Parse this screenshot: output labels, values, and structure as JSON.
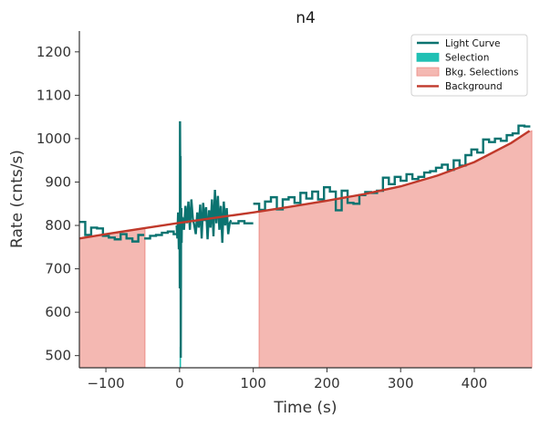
{
  "chart_data": {
    "type": "line",
    "title": "n4",
    "xlabel": "Time (s)",
    "ylabel": "Rate (cnts/s)",
    "xlim": [
      -136,
      478
    ],
    "ylim": [
      472,
      1248
    ],
    "x_ticks": [
      -100,
      0,
      100,
      200,
      300,
      400
    ],
    "x_tick_labels": [
      "−100",
      "0",
      "100",
      "200",
      "300",
      "400"
    ],
    "y_ticks": [
      500,
      600,
      700,
      800,
      900,
      1000,
      1100,
      1200
    ],
    "y_tick_labels": [
      "500",
      "600",
      "700",
      "800",
      "900",
      "1000",
      "1100",
      "1200"
    ],
    "grid": false,
    "legend_position": "top-right",
    "legend": [
      {
        "label": "Light Curve",
        "kind": "line",
        "color": "#0b7370"
      },
      {
        "label": "Selection",
        "kind": "patch",
        "color": "#20c0b4"
      },
      {
        "label": "Bkg. Selections",
        "kind": "patch",
        "color": "#f4b8b2"
      },
      {
        "label": "Background",
        "kind": "line",
        "color": "#c0392b"
      }
    ],
    "background_fit": {
      "name": "Background",
      "color": "#c0392b",
      "x": [
        -136,
        -100,
        -50,
        0,
        50,
        100,
        150,
        200,
        250,
        300,
        350,
        400,
        450,
        475
      ],
      "y": [
        770,
        780,
        793,
        806,
        818,
        830,
        843,
        857,
        872,
        890,
        915,
        946,
        990,
        1018
      ]
    },
    "bkg_selections": [
      {
        "x_start": -136,
        "x_end": -47
      },
      {
        "x_start": 108,
        "x_end": 478
      }
    ],
    "selection": {
      "x_start": 0,
      "x_end": 2,
      "color": "#20c0b4"
    },
    "light_curve": {
      "name": "Light Curve",
      "color": "#0b7370",
      "segments": [
        {
          "step_edges": [
            -136,
            -128,
            -120,
            -112,
            -104,
            -96,
            -88,
            -80,
            -72,
            -64,
            -56,
            -48
          ],
          "step_values": [
            808,
            778,
            795,
            793,
            776,
            772,
            768,
            780,
            770,
            763,
            778
          ]
        },
        {
          "step_edges": [
            -48,
            -40,
            -32,
            -24,
            -16,
            -8,
            -4
          ],
          "step_values": [
            770,
            776,
            778,
            783,
            786,
            780
          ]
        },
        {
          "points": [
            [
              -4,
              800
            ],
            [
              -3,
              770
            ],
            [
              -2,
              830
            ],
            [
              -1,
              745
            ],
            [
              0,
              800
            ],
            [
              0.3,
              655
            ],
            [
              0.6,
              1040
            ],
            [
              1.0,
              900
            ],
            [
              1.3,
              960
            ],
            [
              1.6,
              495
            ],
            [
              2.0,
              780
            ],
            [
              2.4,
              840
            ],
            [
              2.8,
              760
            ],
            [
              3.2,
              820
            ],
            [
              3.6,
              790
            ],
            [
              4.0,
              810
            ],
            [
              5,
              818
            ],
            [
              6,
              790
            ],
            [
              8,
              845
            ],
            [
              10,
              805
            ],
            [
              12,
              855
            ],
            [
              14,
              790
            ],
            [
              16,
              860
            ],
            [
              18,
              815
            ],
            [
              20,
              800
            ],
            [
              22,
              780
            ],
            [
              24,
              830
            ],
            [
              26,
              795
            ],
            [
              28,
              848
            ],
            [
              30,
              770
            ],
            [
              32,
              852
            ],
            [
              34,
              810
            ],
            [
              36,
              842
            ],
            [
              38,
              768
            ],
            [
              40,
              835
            ],
            [
              42,
              795
            ],
            [
              44,
              860
            ],
            [
              46,
              775
            ],
            [
              48,
              882
            ],
            [
              50,
              805
            ],
            [
              52,
              868
            ],
            [
              54,
              790
            ],
            [
              56,
              845
            ],
            [
              58,
              760
            ],
            [
              60,
              855
            ],
            [
              62,
              800
            ],
            [
              64,
              840
            ],
            [
              66,
              780
            ],
            [
              68,
              805
            ],
            [
              70,
              812
            ]
          ]
        },
        {
          "step_edges": [
            70,
            80,
            88,
            100
          ],
          "step_values": [
            805,
            810,
            805
          ]
        },
        {
          "step_edges": [
            100,
            108,
            116,
            124,
            132,
            140,
            148,
            156,
            164,
            172,
            180,
            188,
            196,
            204,
            212,
            220,
            228,
            236,
            244,
            252,
            260,
            268,
            276,
            284,
            292,
            300,
            308,
            316,
            324,
            332,
            340,
            348,
            356,
            364,
            372,
            380,
            388,
            396,
            404,
            412,
            420,
            428,
            436,
            444,
            452,
            460,
            468,
            476
          ],
          "step_values": [
            850,
            836,
            855,
            865,
            837,
            860,
            865,
            852,
            875,
            862,
            878,
            860,
            888,
            878,
            835,
            880,
            852,
            850,
            870,
            877,
            875,
            880,
            910,
            895,
            912,
            903,
            918,
            907,
            912,
            922,
            925,
            933,
            940,
            928,
            950,
            938,
            962,
            975,
            968,
            998,
            992,
            1000,
            995,
            1008,
            1012,
            1030,
            1028
          ]
        }
      ]
    }
  }
}
